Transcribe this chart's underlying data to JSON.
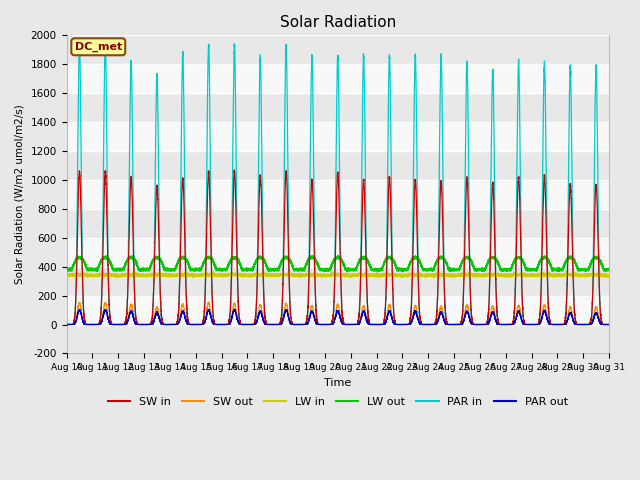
{
  "title": "Solar Radiation",
  "ylabel": "Solar Radiation (W/m2 umol/m2/s)",
  "xlabel": "Time",
  "ylim": [
    -200,
    2000
  ],
  "annotation_text": "DC_met",
  "annotation_bg": "#FFFF99",
  "annotation_border": "#8B4513",
  "fig_bg": "#E8E8E8",
  "plot_bg": "#FFFFFF",
  "series": [
    {
      "label": "SW in",
      "color": "#CC0000"
    },
    {
      "label": "SW out",
      "color": "#FF8C00"
    },
    {
      "label": "LW in",
      "color": "#CCCC00"
    },
    {
      "label": "LW out",
      "color": "#00CC00"
    },
    {
      "label": "PAR in",
      "color": "#00CCCC"
    },
    {
      "label": "PAR out",
      "color": "#0000CC"
    }
  ],
  "n_days": 21,
  "start_day": 10,
  "points_per_day": 480,
  "par_in_peaks": [
    1940,
    1950,
    1820,
    1720,
    1870,
    1930,
    1930,
    1850,
    1930,
    1860,
    1860,
    1860,
    1860,
    1860,
    1860,
    1820,
    1760,
    1820,
    1810,
    1780,
    1780
  ],
  "sw_in_peaks": [
    1060,
    1060,
    1020,
    960,
    1010,
    1060,
    1060,
    1030,
    1060,
    1000,
    1050,
    1000,
    1020,
    1000,
    990,
    1020,
    980,
    1020,
    1030,
    970,
    970
  ],
  "sw_out_peaks": [
    150,
    150,
    140,
    120,
    140,
    150,
    145,
    135,
    145,
    130,
    140,
    130,
    135,
    130,
    125,
    135,
    125,
    130,
    135,
    120,
    120
  ],
  "par_out_peaks": [
    100,
    100,
    90,
    80,
    90,
    100,
    100,
    90,
    100,
    90,
    95,
    90,
    90,
    90,
    85,
    90,
    85,
    90,
    95,
    80,
    80
  ],
  "lw_in_day": 350,
  "lw_in_night": 340,
  "lw_out_day": 470,
  "lw_out_night": 380
}
